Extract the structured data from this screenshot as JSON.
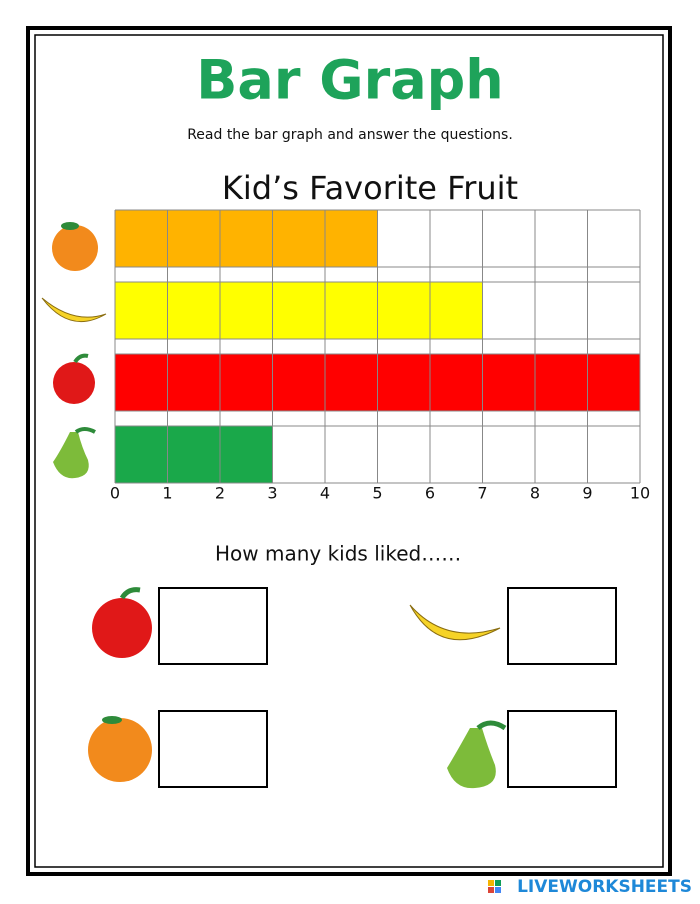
{
  "header": {
    "title": "Bar Graph",
    "instruction": "Read the bar graph and answer the questions."
  },
  "chart_data": {
    "type": "bar",
    "orientation": "horizontal",
    "title": "Kid’s  Favorite Fruit",
    "categories": [
      null,
      null,
      null,
      null
    ],
    "values": [
      5,
      7,
      10,
      3
    ],
    "colors": [
      "#ffb300",
      "#ffff00",
      "#ff0000",
      "#1aa84a"
    ],
    "xlim": [
      0,
      10
    ],
    "xticks": [
      0,
      1,
      2,
      3,
      4,
      5,
      6,
      7,
      8,
      9,
      10
    ],
    "grid": true
  },
  "question": "How many kids liked……",
  "footer": {
    "brand": "LIVEWORKSHEETS"
  }
}
